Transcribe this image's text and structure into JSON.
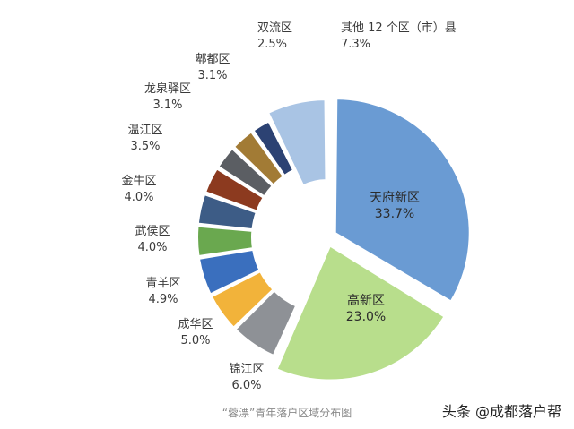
{
  "chart_data": {
    "type": "pie",
    "title": "",
    "caption": "“蓉漂”青年落户区域分布图",
    "slices": [
      {
        "label": "天府新区",
        "value": 33.7,
        "value_label": "33.7%",
        "color": "#6a9bd3"
      },
      {
        "label": "高新区",
        "value": 23.0,
        "value_label": "23.0%",
        "color": "#b8de8c"
      },
      {
        "label": "锦江区",
        "value": 6.0,
        "value_label": "6.0%",
        "color": "#8e9196"
      },
      {
        "label": "成华区",
        "value": 5.0,
        "value_label": "5.0%",
        "color": "#f2b33a"
      },
      {
        "label": "青羊区",
        "value": 4.9,
        "value_label": "4.9%",
        "color": "#3a6fbe"
      },
      {
        "label": "武侯区",
        "value": 4.0,
        "value_label": "4.0%",
        "color": "#6aa84f"
      },
      {
        "label": "金牛区",
        "value": 4.0,
        "value_label": "4.0%",
        "color": "#3d5c86"
      },
      {
        "label": "温江区",
        "value": 3.5,
        "value_label": "3.5%",
        "color": "#8c3a1f"
      },
      {
        "label": "龙泉驿区",
        "value": 3.1,
        "value_label": "3.1%",
        "color": "#5b5e63"
      },
      {
        "label": "郫都区",
        "value": 3.1,
        "value_label": "3.1%",
        "color": "#a27b35"
      },
      {
        "label": "双流区",
        "value": 2.5,
        "value_label": "2.5%",
        "color": "#2c4273"
      },
      {
        "label": "其他 12 个区（市）县",
        "value": 7.3,
        "value_label": "7.3%",
        "color": "#a9c4e4"
      }
    ]
  },
  "watermark": "头条 @成都落户帮"
}
